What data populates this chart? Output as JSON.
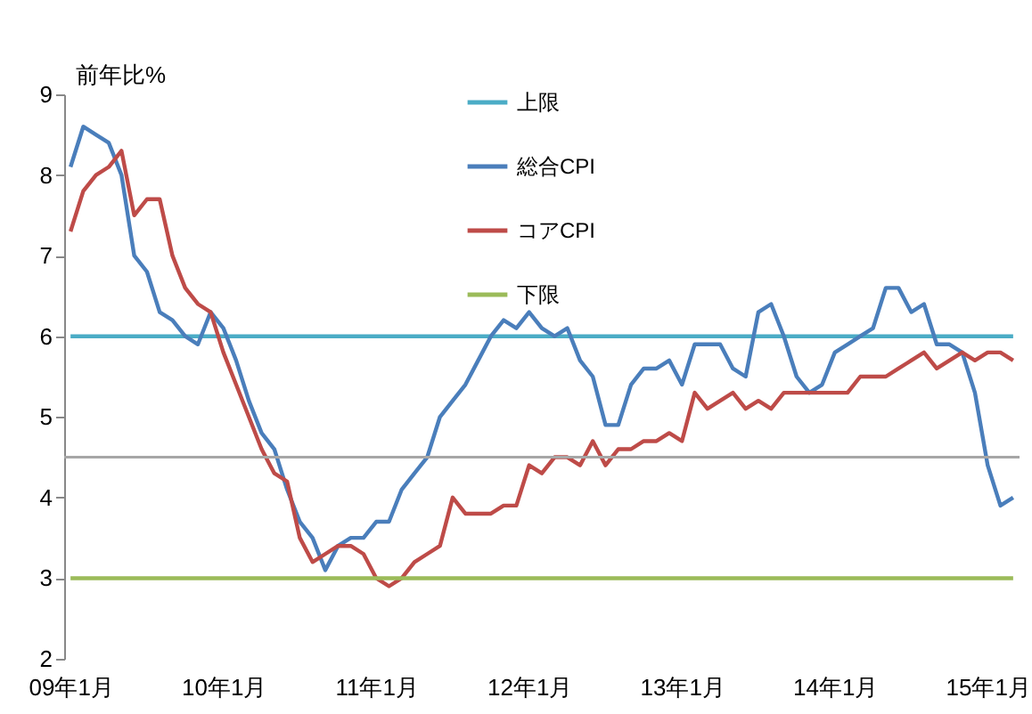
{
  "chart_data": {
    "type": "line",
    "ylabel": "前年比%",
    "categories": [
      "09年1月",
      null,
      null,
      null,
      null,
      null,
      null,
      null,
      null,
      null,
      null,
      null,
      "10年1月",
      null,
      null,
      null,
      null,
      null,
      null,
      null,
      null,
      null,
      null,
      null,
      "11年1月",
      null,
      null,
      null,
      null,
      null,
      null,
      null,
      null,
      null,
      null,
      null,
      "12年1月",
      null,
      null,
      null,
      null,
      null,
      null,
      null,
      null,
      null,
      null,
      null,
      "13年1月",
      null,
      null,
      null,
      null,
      null,
      null,
      null,
      null,
      null,
      null,
      null,
      "14年1月",
      null,
      null,
      null,
      null,
      null,
      null,
      null,
      null,
      null,
      null,
      null,
      "15年1月",
      null,
      null
    ],
    "series": [
      {
        "name": "上限",
        "color": "#4bacc6",
        "values": [
          6,
          6,
          6,
          6,
          6,
          6,
          6,
          6,
          6,
          6,
          6,
          6,
          6,
          6,
          6,
          6,
          6,
          6,
          6,
          6,
          6,
          6,
          6,
          6,
          6,
          6,
          6,
          6,
          6,
          6,
          6,
          6,
          6,
          6,
          6,
          6,
          6,
          6,
          6,
          6,
          6,
          6,
          6,
          6,
          6,
          6,
          6,
          6,
          6,
          6,
          6,
          6,
          6,
          6,
          6,
          6,
          6,
          6,
          6,
          6,
          6,
          6,
          6,
          6,
          6,
          6,
          6,
          6,
          6,
          6,
          6,
          6,
          6,
          6,
          6
        ]
      },
      {
        "name": "総合CPI",
        "color": "#4a7ebb",
        "values": [
          8.1,
          8.6,
          8.5,
          8.4,
          8.0,
          7.0,
          6.8,
          6.3,
          6.2,
          6.0,
          5.9,
          6.3,
          6.1,
          5.7,
          5.2,
          4.8,
          4.6,
          4.1,
          3.7,
          3.5,
          3.1,
          3.4,
          3.5,
          3.5,
          3.7,
          3.7,
          4.1,
          4.3,
          4.5,
          5.0,
          5.2,
          5.4,
          5.7,
          6.0,
          6.2,
          6.1,
          6.3,
          6.1,
          6.0,
          6.1,
          5.7,
          5.5,
          4.9,
          4.9,
          5.4,
          5.6,
          5.6,
          5.7,
          5.4,
          5.9,
          5.9,
          5.9,
          5.6,
          5.5,
          6.3,
          6.4,
          6.0,
          5.5,
          5.3,
          5.4,
          5.8,
          5.9,
          6.0,
          6.1,
          6.6,
          6.6,
          6.3,
          6.4,
          5.9,
          5.9,
          5.8,
          5.3,
          4.4,
          3.9,
          4.0
        ]
      },
      {
        "name": "コアCPI",
        "color": "#be4b48",
        "values": [
          7.3,
          7.8,
          8.0,
          8.1,
          8.3,
          7.5,
          7.7,
          7.7,
          7.0,
          6.6,
          6.4,
          6.3,
          5.8,
          5.4,
          5.0,
          4.6,
          4.3,
          4.2,
          3.5,
          3.2,
          3.3,
          3.4,
          3.4,
          3.3,
          3.0,
          2.9,
          3.0,
          3.2,
          3.3,
          3.4,
          4.0,
          3.8,
          3.8,
          3.8,
          3.9,
          3.9,
          4.4,
          4.3,
          4.5,
          4.5,
          4.4,
          4.7,
          4.4,
          4.6,
          4.6,
          4.7,
          4.7,
          4.8,
          4.7,
          5.3,
          5.1,
          5.2,
          5.3,
          5.1,
          5.2,
          5.1,
          5.3,
          5.3,
          5.3,
          5.3,
          5.3,
          5.3,
          5.5,
          5.5,
          5.5,
          5.6,
          5.7,
          5.8,
          5.6,
          5.7,
          5.8,
          5.7,
          5.8,
          5.8,
          5.7
        ]
      },
      {
        "name": "下限",
        "color": "#9bbb59",
        "values": [
          3,
          3,
          3,
          3,
          3,
          3,
          3,
          3,
          3,
          3,
          3,
          3,
          3,
          3,
          3,
          3,
          3,
          3,
          3,
          3,
          3,
          3,
          3,
          3,
          3,
          3,
          3,
          3,
          3,
          3,
          3,
          3,
          3,
          3,
          3,
          3,
          3,
          3,
          3,
          3,
          3,
          3,
          3,
          3,
          3,
          3,
          3,
          3,
          3,
          3,
          3,
          3,
          3,
          3,
          3,
          3,
          3,
          3,
          3,
          3,
          3,
          3,
          3,
          3,
          3,
          3,
          3,
          3,
          3,
          3,
          3,
          3,
          3,
          3,
          3
        ]
      }
    ],
    "ylim": [
      2,
      9
    ],
    "yticks": [
      2,
      3,
      4,
      5,
      6,
      7,
      8,
      9
    ],
    "ref_lines": [
      {
        "axis": "y",
        "value": 4.5,
        "color": "#a6a6a6"
      }
    ],
    "grid": false,
    "legend": "top",
    "marker": "none",
    "line_style": "solid"
  }
}
